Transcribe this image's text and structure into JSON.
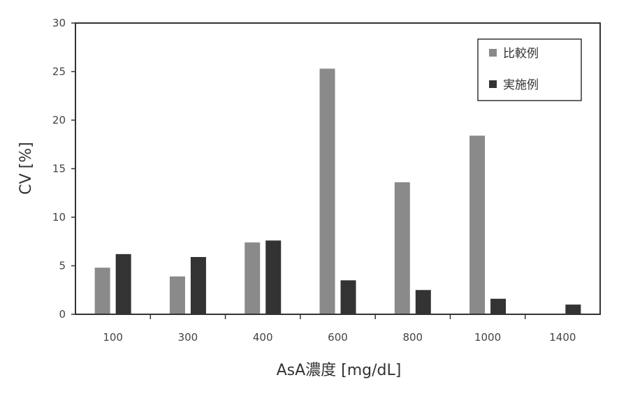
{
  "chart_data": {
    "type": "bar",
    "title": "",
    "xlabel": "AsA濃度 [mg/dL]",
    "ylabel": "CV [%]",
    "ylim": [
      0,
      30
    ],
    "yticks": [
      "0",
      "5",
      "10",
      "15",
      "20",
      "25",
      "30"
    ],
    "categories": [
      "100",
      "300",
      "400",
      "600",
      "800",
      "1000",
      "1400"
    ],
    "series": [
      {
        "name": "比較例",
        "color": "#8a8a8a",
        "values": [
          4.8,
          3.9,
          7.4,
          25.3,
          13.6,
          18.4,
          null
        ]
      },
      {
        "name": "実施例",
        "color": "#333333",
        "values": [
          6.2,
          5.9,
          7.6,
          3.5,
          2.5,
          1.6,
          1.0
        ]
      }
    ],
    "grid": false,
    "legend_position": "top-right"
  }
}
